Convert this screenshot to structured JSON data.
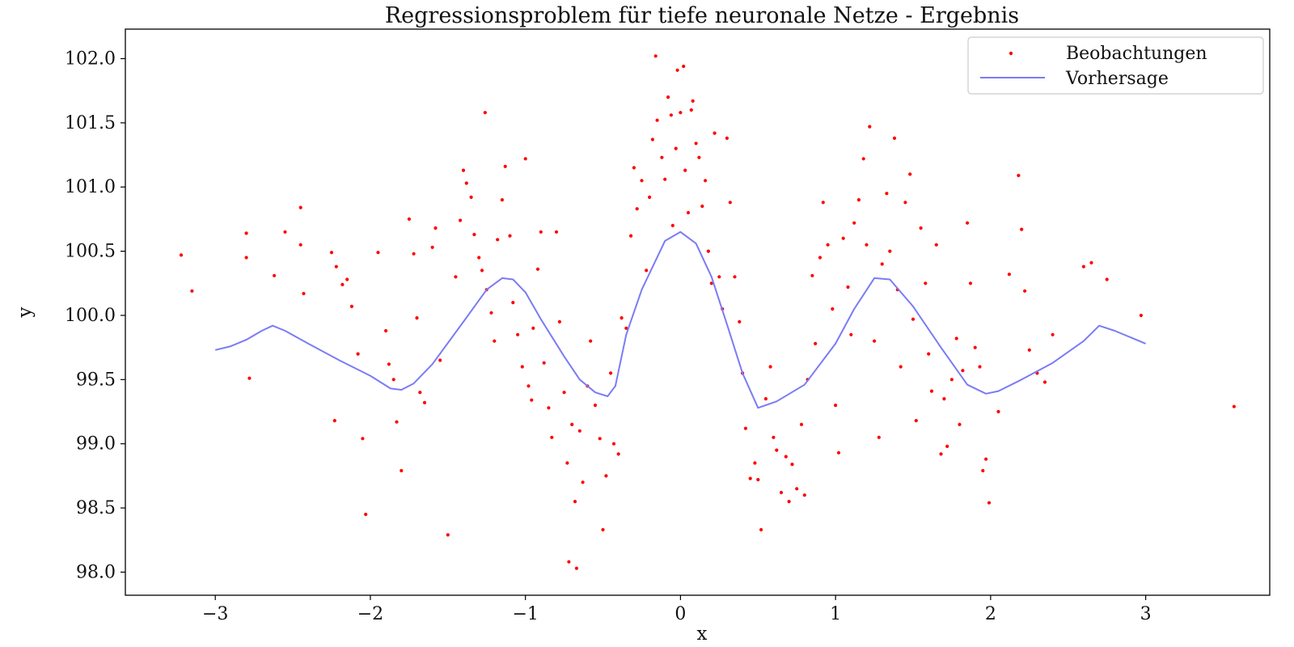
{
  "chart_data": {
    "type": "scatter",
    "title": "Regressionsproblem für tiefe neuronale Netze - Ergebnis",
    "xlabel": "x",
    "ylabel": "y",
    "xlim": [
      -3.58,
      3.8
    ],
    "ylim": [
      97.82,
      102.23
    ],
    "xticks": [
      -3,
      -2,
      -1,
      0,
      1,
      2,
      3
    ],
    "xtick_labels": [
      "−3",
      "−2",
      "−1",
      "0",
      "1",
      "2",
      "3"
    ],
    "yticks": [
      98.0,
      98.5,
      99.0,
      99.5,
      100.0,
      100.5,
      101.0,
      101.5,
      102.0
    ],
    "ytick_labels": [
      "98.0",
      "98.5",
      "99.0",
      "99.5",
      "100.0",
      "100.5",
      "101.0",
      "101.5",
      "102.0"
    ],
    "grid": false,
    "legend_position": "top-right",
    "colors": {
      "observations": "#ff0000",
      "prediction": "#7b7bf5"
    },
    "series": [
      {
        "name": "Beobachtungen",
        "kind": "scatter",
        "points": [
          [
            -3.22,
            100.47
          ],
          [
            -3.15,
            100.19
          ],
          [
            -2.8,
            100.64
          ],
          [
            -2.8,
            100.45
          ],
          [
            -2.78,
            99.51
          ],
          [
            -2.62,
            100.31
          ],
          [
            -2.55,
            100.65
          ],
          [
            -2.45,
            100.84
          ],
          [
            -2.45,
            100.55
          ],
          [
            -2.43,
            100.17
          ],
          [
            -2.25,
            100.49
          ],
          [
            -2.22,
            100.38
          ],
          [
            -2.18,
            100.24
          ],
          [
            -2.15,
            100.28
          ],
          [
            -2.12,
            100.07
          ],
          [
            -2.08,
            99.7
          ],
          [
            -2.23,
            99.18
          ],
          [
            -2.05,
            99.04
          ],
          [
            -2.03,
            98.45
          ],
          [
            -1.95,
            100.49
          ],
          [
            -1.9,
            99.88
          ],
          [
            -1.88,
            99.62
          ],
          [
            -1.85,
            99.5
          ],
          [
            -1.83,
            99.17
          ],
          [
            -1.8,
            98.79
          ],
          [
            -1.75,
            100.75
          ],
          [
            -1.72,
            100.48
          ],
          [
            -1.7,
            99.98
          ],
          [
            -1.68,
            99.4
          ],
          [
            -1.65,
            99.32
          ],
          [
            -1.6,
            100.53
          ],
          [
            -1.58,
            100.68
          ],
          [
            -1.55,
            99.65
          ],
          [
            -1.5,
            98.29
          ],
          [
            -1.45,
            100.3
          ],
          [
            -1.42,
            100.74
          ],
          [
            -1.4,
            101.13
          ],
          [
            -1.38,
            101.03
          ],
          [
            -1.35,
            100.92
          ],
          [
            -1.33,
            100.63
          ],
          [
            -1.3,
            100.45
          ],
          [
            -1.28,
            100.35
          ],
          [
            -1.26,
            101.58
          ],
          [
            -1.25,
            100.2
          ],
          [
            -1.22,
            100.02
          ],
          [
            -1.2,
            99.8
          ],
          [
            -1.18,
            100.59
          ],
          [
            -1.15,
            100.9
          ],
          [
            -1.13,
            101.16
          ],
          [
            -1.1,
            100.62
          ],
          [
            -1.08,
            100.1
          ],
          [
            -1.05,
            99.85
          ],
          [
            -1.02,
            99.6
          ],
          [
            -1.0,
            101.22
          ],
          [
            -0.98,
            99.45
          ],
          [
            -0.96,
            99.34
          ],
          [
            -0.95,
            99.9
          ],
          [
            -0.92,
            100.36
          ],
          [
            -0.9,
            100.65
          ],
          [
            -0.88,
            99.63
          ],
          [
            -0.85,
            99.28
          ],
          [
            -0.83,
            99.05
          ],
          [
            -0.8,
            100.65
          ],
          [
            -0.78,
            99.95
          ],
          [
            -0.75,
            99.4
          ],
          [
            -0.73,
            98.85
          ],
          [
            -0.72,
            98.08
          ],
          [
            -0.7,
            99.15
          ],
          [
            -0.68,
            98.55
          ],
          [
            -0.67,
            98.03
          ],
          [
            -0.65,
            99.1
          ],
          [
            -0.63,
            98.7
          ],
          [
            -0.6,
            99.45
          ],
          [
            -0.58,
            99.8
          ],
          [
            -0.55,
            99.3
          ],
          [
            -0.52,
            99.04
          ],
          [
            -0.5,
            98.33
          ],
          [
            -0.48,
            98.75
          ],
          [
            -0.45,
            99.55
          ],
          [
            -0.43,
            99.0
          ],
          [
            -0.4,
            98.92
          ],
          [
            -0.38,
            99.98
          ],
          [
            -0.35,
            99.9
          ],
          [
            -0.32,
            100.62
          ],
          [
            -0.3,
            101.15
          ],
          [
            -0.28,
            100.83
          ],
          [
            -0.25,
            101.05
          ],
          [
            -0.22,
            100.35
          ],
          [
            -0.2,
            100.92
          ],
          [
            -0.18,
            101.37
          ],
          [
            -0.16,
            102.02
          ],
          [
            -0.15,
            101.52
          ],
          [
            -0.12,
            101.23
          ],
          [
            -0.1,
            101.06
          ],
          [
            -0.08,
            101.7
          ],
          [
            -0.06,
            101.56
          ],
          [
            -0.05,
            100.7
          ],
          [
            -0.03,
            101.3
          ],
          [
            -0.02,
            101.91
          ],
          [
            0.0,
            101.58
          ],
          [
            0.02,
            101.94
          ],
          [
            0.03,
            101.13
          ],
          [
            0.05,
            100.8
          ],
          [
            0.07,
            101.6
          ],
          [
            0.08,
            101.67
          ],
          [
            0.1,
            101.34
          ],
          [
            0.12,
            101.23
          ],
          [
            0.14,
            100.85
          ],
          [
            0.16,
            101.05
          ],
          [
            0.18,
            100.5
          ],
          [
            0.2,
            100.25
          ],
          [
            0.22,
            101.42
          ],
          [
            0.25,
            100.3
          ],
          [
            0.27,
            100.05
          ],
          [
            0.3,
            101.38
          ],
          [
            0.32,
            100.88
          ],
          [
            0.35,
            100.3
          ],
          [
            0.38,
            99.95
          ],
          [
            0.4,
            99.55
          ],
          [
            0.42,
            99.12
          ],
          [
            0.45,
            98.73
          ],
          [
            0.48,
            98.85
          ],
          [
            0.5,
            98.72
          ],
          [
            0.52,
            98.33
          ],
          [
            0.55,
            99.35
          ],
          [
            0.58,
            99.6
          ],
          [
            0.6,
            99.05
          ],
          [
            0.62,
            98.95
          ],
          [
            0.65,
            98.62
          ],
          [
            0.68,
            98.9
          ],
          [
            0.7,
            98.55
          ],
          [
            0.72,
            98.84
          ],
          [
            0.75,
            98.65
          ],
          [
            0.78,
            99.15
          ],
          [
            0.8,
            98.6
          ],
          [
            0.82,
            99.5
          ],
          [
            0.85,
            100.31
          ],
          [
            0.87,
            99.78
          ],
          [
            0.9,
            100.45
          ],
          [
            0.92,
            100.88
          ],
          [
            0.95,
            100.55
          ],
          [
            0.98,
            100.05
          ],
          [
            1.0,
            99.3
          ],
          [
            1.02,
            98.93
          ],
          [
            1.05,
            100.6
          ],
          [
            1.08,
            100.22
          ],
          [
            1.1,
            99.85
          ],
          [
            1.12,
            100.72
          ],
          [
            1.15,
            100.9
          ],
          [
            1.18,
            101.22
          ],
          [
            1.2,
            100.55
          ],
          [
            1.22,
            101.47
          ],
          [
            1.25,
            99.8
          ],
          [
            1.28,
            99.05
          ],
          [
            1.3,
            100.4
          ],
          [
            1.33,
            100.95
          ],
          [
            1.35,
            100.5
          ],
          [
            1.38,
            101.38
          ],
          [
            1.4,
            100.2
          ],
          [
            1.42,
            99.6
          ],
          [
            1.45,
            100.88
          ],
          [
            1.48,
            101.1
          ],
          [
            1.5,
            99.97
          ],
          [
            1.52,
            99.18
          ],
          [
            1.55,
            100.68
          ],
          [
            1.58,
            100.25
          ],
          [
            1.6,
            99.7
          ],
          [
            1.62,
            99.41
          ],
          [
            1.65,
            100.55
          ],
          [
            1.68,
            98.92
          ],
          [
            1.7,
            99.35
          ],
          [
            1.72,
            98.98
          ],
          [
            1.75,
            99.5
          ],
          [
            1.78,
            99.82
          ],
          [
            1.8,
            99.15
          ],
          [
            1.82,
            99.57
          ],
          [
            1.85,
            100.72
          ],
          [
            1.87,
            100.25
          ],
          [
            1.9,
            99.75
          ],
          [
            1.93,
            99.6
          ],
          [
            1.95,
            98.79
          ],
          [
            1.97,
            98.88
          ],
          [
            1.99,
            98.54
          ],
          [
            2.05,
            99.25
          ],
          [
            2.12,
            100.32
          ],
          [
            2.18,
            101.09
          ],
          [
            2.2,
            100.67
          ],
          [
            2.22,
            100.19
          ],
          [
            2.25,
            99.73
          ],
          [
            2.3,
            99.55
          ],
          [
            2.35,
            99.48
          ],
          [
            2.4,
            99.85
          ],
          [
            2.6,
            100.38
          ],
          [
            2.65,
            100.41
          ],
          [
            2.75,
            100.28
          ],
          [
            2.97,
            100.0
          ],
          [
            3.57,
            99.29
          ]
        ]
      },
      {
        "name": "Vorhersage",
        "kind": "line",
        "points": [
          [
            -3.0,
            99.73
          ],
          [
            -2.9,
            99.76
          ],
          [
            -2.8,
            99.81
          ],
          [
            -2.7,
            99.88
          ],
          [
            -2.63,
            99.92
          ],
          [
            -2.55,
            99.88
          ],
          [
            -2.4,
            99.78
          ],
          [
            -2.2,
            99.65
          ],
          [
            -2.0,
            99.53
          ],
          [
            -1.87,
            99.43
          ],
          [
            -1.8,
            99.42
          ],
          [
            -1.72,
            99.47
          ],
          [
            -1.6,
            99.62
          ],
          [
            -1.4,
            99.95
          ],
          [
            -1.25,
            100.2
          ],
          [
            -1.15,
            100.29
          ],
          [
            -1.08,
            100.28
          ],
          [
            -1.0,
            100.18
          ],
          [
            -0.9,
            99.97
          ],
          [
            -0.75,
            99.68
          ],
          [
            -0.65,
            99.5
          ],
          [
            -0.55,
            99.4
          ],
          [
            -0.47,
            99.37
          ],
          [
            -0.42,
            99.45
          ],
          [
            -0.35,
            99.85
          ],
          [
            -0.25,
            100.2
          ],
          [
            -0.1,
            100.58
          ],
          [
            0.0,
            100.65
          ],
          [
            0.1,
            100.56
          ],
          [
            0.2,
            100.3
          ],
          [
            0.3,
            99.93
          ],
          [
            0.4,
            99.55
          ],
          [
            0.5,
            99.28
          ],
          [
            0.62,
            99.33
          ],
          [
            0.8,
            99.46
          ],
          [
            1.0,
            99.78
          ],
          [
            1.12,
            100.05
          ],
          [
            1.25,
            100.29
          ],
          [
            1.35,
            100.28
          ],
          [
            1.5,
            100.07
          ],
          [
            1.68,
            99.75
          ],
          [
            1.85,
            99.46
          ],
          [
            1.97,
            99.39
          ],
          [
            2.05,
            99.41
          ],
          [
            2.2,
            99.5
          ],
          [
            2.4,
            99.63
          ],
          [
            2.6,
            99.8
          ],
          [
            2.7,
            99.92
          ],
          [
            2.8,
            99.88
          ],
          [
            3.0,
            99.78
          ]
        ]
      }
    ]
  }
}
